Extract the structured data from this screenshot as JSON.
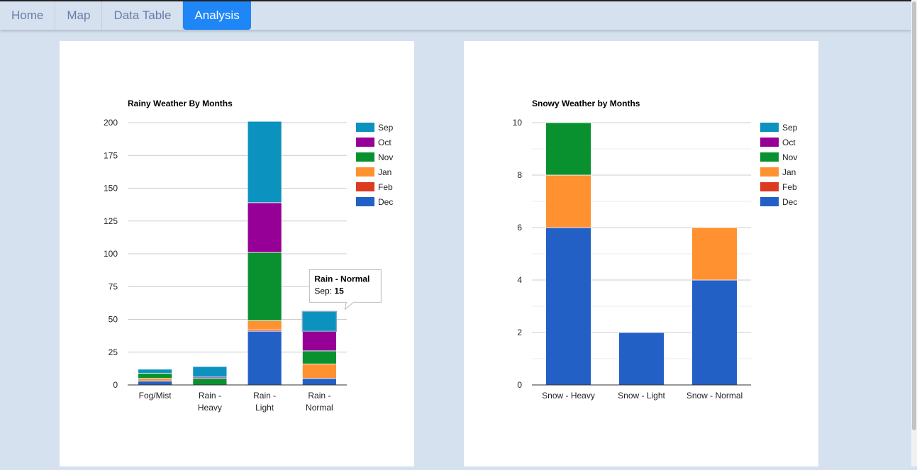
{
  "nav": {
    "tabs": [
      {
        "label": "Home"
      },
      {
        "label": "Map"
      },
      {
        "label": "Data Table"
      },
      {
        "label": "Analysis",
        "active": true
      }
    ]
  },
  "chart_data": [
    {
      "type": "bar",
      "stacked": true,
      "title": "Rainy Weather By Months",
      "xlabel": "",
      "ylabel": "",
      "ylim": [
        0,
        200
      ],
      "yticks": [
        0,
        25,
        50,
        75,
        100,
        125,
        150,
        175,
        200
      ],
      "categories": [
        "Fog/Mist",
        "Rain - Heavy",
        "Rain - Light",
        "Rain - Normal"
      ],
      "legend": "right",
      "series": [
        {
          "name": "Dec",
          "color": "#2360c6",
          "values": [
            3,
            0,
            41,
            5
          ]
        },
        {
          "name": "Feb",
          "color": "#dd3a22",
          "values": [
            0,
            0,
            1,
            0
          ]
        },
        {
          "name": "Jan",
          "color": "#ff9130",
          "values": [
            2,
            0,
            7,
            11
          ]
        },
        {
          "name": "Nov",
          "color": "#099130",
          "values": [
            4,
            5,
            52,
            10
          ]
        },
        {
          "name": "Oct",
          "color": "#960096",
          "values": [
            0,
            1,
            38,
            15
          ]
        },
        {
          "name": "Sep",
          "color": "#0b92be",
          "values": [
            3,
            8,
            62,
            15
          ]
        }
      ],
      "tooltip": {
        "category": "Rain - Normal",
        "title": "Rain - Normal",
        "label": "Sep:",
        "value": "15"
      }
    },
    {
      "type": "bar",
      "stacked": true,
      "title": "Snowy Weather by Months",
      "xlabel": "",
      "ylabel": "",
      "ylim": [
        0,
        10
      ],
      "yticks": [
        0,
        2,
        4,
        6,
        8,
        10
      ],
      "categories": [
        "Snow - Heavy",
        "Snow - Light",
        "Snow - Normal"
      ],
      "legend": "right",
      "series": [
        {
          "name": "Dec",
          "color": "#2360c6",
          "values": [
            6,
            2,
            4
          ]
        },
        {
          "name": "Feb",
          "color": "#dd3a22",
          "values": [
            0,
            0,
            0
          ]
        },
        {
          "name": "Jan",
          "color": "#ff9130",
          "values": [
            2,
            0,
            2
          ]
        },
        {
          "name": "Nov",
          "color": "#099130",
          "values": [
            2,
            0,
            0
          ]
        },
        {
          "name": "Oct",
          "color": "#960096",
          "values": [
            0,
            0,
            0
          ]
        },
        {
          "name": "Sep",
          "color": "#0b92be",
          "values": [
            0,
            0,
            0
          ]
        }
      ]
    }
  ]
}
